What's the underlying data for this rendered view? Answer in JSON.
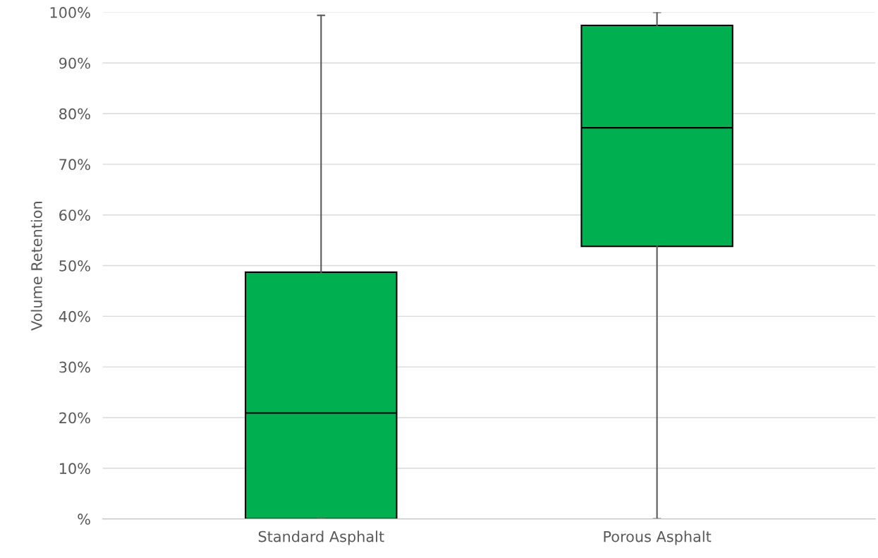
{
  "chart_data": {
    "type": "box",
    "ylabel": "Volume Retention",
    "categories": [
      "Standard Asphalt",
      "Porous Asphalt"
    ],
    "series": [
      {
        "color": "#00b050",
        "boxes": [
          {
            "low": 0,
            "q1": 0,
            "median": 20.9,
            "q3": 48.7,
            "high": 99.4
          },
          {
            "low": 0,
            "q1": 53.8,
            "median": 77.2,
            "q3": 97.4,
            "high": 100
          }
        ]
      }
    ],
    "ylim": [
      0,
      100
    ],
    "yticks": [
      {
        "value": 0,
        "label": "%"
      },
      {
        "value": 10,
        "label": "10%"
      },
      {
        "value": 20,
        "label": "20%"
      },
      {
        "value": 30,
        "label": "30%"
      },
      {
        "value": 40,
        "label": "40%"
      },
      {
        "value": 50,
        "label": "50%"
      },
      {
        "value": 60,
        "label": "60%"
      },
      {
        "value": 70,
        "label": "70%"
      },
      {
        "value": 80,
        "label": "80%"
      },
      {
        "value": 90,
        "label": "90%"
      },
      {
        "value": 100,
        "label": "100%"
      }
    ],
    "grid": "y",
    "legend": false
  }
}
